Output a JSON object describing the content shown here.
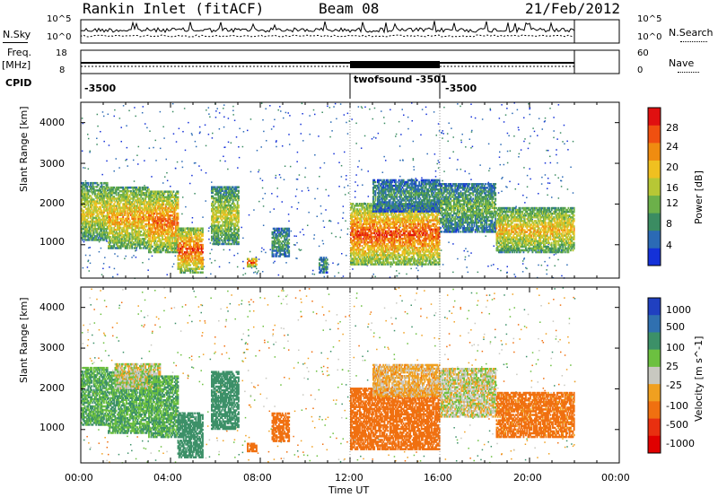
{
  "header": {
    "title": "Rankin Inlet (fitACF)",
    "beam": "Beam 08",
    "date": "21/Feb/2012"
  },
  "top_panel": {
    "nsky_label": "N.Sky",
    "nsearch_label": "N.Search",
    "left_ticks": [
      "10^5",
      "10^0"
    ],
    "right_ticks": [
      "10^5",
      "10^0"
    ],
    "freq_label": "Freq.",
    "freq_unit": "[MHz]",
    "freq_ticks": [
      "18",
      "8"
    ],
    "nave_label": "Nave",
    "nave_ticks": [
      "60",
      "0"
    ],
    "cpid_label": "CPID",
    "cpid_segments": [
      {
        "start_hour": 0.0,
        "end_hour": 12.0,
        "label": "-3500"
      },
      {
        "start_hour": 12.0,
        "end_hour": 16.0,
        "label": "twofsound -3501"
      },
      {
        "start_hour": 16.0,
        "end_hour": 22.0,
        "label": "-3500"
      }
    ]
  },
  "chart_data": [
    {
      "type": "heatmap",
      "name": "power",
      "ylabel": "Slant Range [km]",
      "yticks": [
        "1000",
        "2000",
        "3000",
        "4000"
      ],
      "ylim": [
        180,
        4500
      ],
      "xlim_hours": [
        0,
        24
      ],
      "data_end_hour": 22,
      "colorbar": {
        "label": "Power [dB]",
        "ticks": [
          "4",
          "8",
          "12",
          "16",
          "20",
          "24",
          "28"
        ],
        "colors": [
          "#1431d8",
          "#2b6ab5",
          "#3b8c62",
          "#6cb04a",
          "#b7c735",
          "#f0c020",
          "#f08c10",
          "#f05010",
          "#e01010"
        ]
      },
      "echo_regions": [
        {
          "t0": 0.0,
          "t1": 1.2,
          "r0": 1100,
          "r1": 2500,
          "level": 0.6
        },
        {
          "t0": 1.2,
          "t1": 3.0,
          "r0": 900,
          "r1": 2400,
          "level": 0.7
        },
        {
          "t0": 3.0,
          "t1": 4.3,
          "r0": 800,
          "r1": 2300,
          "level": 0.8
        },
        {
          "t0": 4.3,
          "t1": 5.4,
          "r0": 300,
          "r1": 1400,
          "level": 0.85
        },
        {
          "t0": 5.8,
          "t1": 7.0,
          "r0": 1000,
          "r1": 2400,
          "level": 0.55
        },
        {
          "t0": 7.4,
          "t1": 7.8,
          "r0": 450,
          "r1": 650,
          "level": 0.9
        },
        {
          "t0": 8.5,
          "t1": 9.3,
          "r0": 700,
          "r1": 1400,
          "level": 0.35
        },
        {
          "t0": 10.6,
          "t1": 11.0,
          "r0": 300,
          "r1": 700,
          "level": 0.3
        },
        {
          "t0": 12.0,
          "t1": 16.0,
          "r0": 500,
          "r1": 2000,
          "level": 0.85
        },
        {
          "t0": 13.0,
          "t1": 16.0,
          "r0": 1800,
          "r1": 2600,
          "level": 0.3
        },
        {
          "t0": 16.0,
          "t1": 18.5,
          "r0": 1300,
          "r1": 2500,
          "level": 0.4
        },
        {
          "t0": 18.5,
          "t1": 22.0,
          "r0": 800,
          "r1": 1900,
          "level": 0.65
        }
      ]
    },
    {
      "type": "heatmap",
      "name": "velocity",
      "ylabel": "Slant Range [km]",
      "yticks": [
        "1000",
        "2000",
        "3000",
        "4000"
      ],
      "ylim": [
        180,
        4500
      ],
      "xlim_hours": [
        0,
        24
      ],
      "data_end_hour": 22,
      "colorbar": {
        "label": "Velocity [m s^-1]",
        "ticks": [
          "1000",
          "500",
          "100",
          "25",
          "-25",
          "-100",
          "-500",
          "-1000"
        ],
        "colors": [
          "#2040c0",
          "#3070b0",
          "#3c9068",
          "#6cc040",
          "#c8c8c0",
          "#f0a020",
          "#f07010",
          "#e83010",
          "#e00000"
        ]
      },
      "echo_regions": [
        {
          "t0": 0.0,
          "t1": 1.2,
          "r0": 1100,
          "r1": 2500,
          "vel": 100
        },
        {
          "t0": 1.2,
          "t1": 3.0,
          "r0": 900,
          "r1": 2400,
          "vel": 100
        },
        {
          "t0": 1.5,
          "t1": 3.5,
          "r0": 2000,
          "r1": 2600,
          "vel": 0
        },
        {
          "t0": 3.0,
          "t1": 4.3,
          "r0": 800,
          "r1": 2300,
          "vel": 100
        },
        {
          "t0": 4.3,
          "t1": 5.4,
          "r0": 300,
          "r1": 1400,
          "vel": 300
        },
        {
          "t0": 5.8,
          "t1": 7.0,
          "r0": 1000,
          "r1": 2400,
          "vel": 200
        },
        {
          "t0": 7.4,
          "t1": 7.8,
          "r0": 450,
          "r1": 650,
          "vel": -300
        },
        {
          "t0": 8.5,
          "t1": 9.3,
          "r0": 700,
          "r1": 1400,
          "vel": -300
        },
        {
          "t0": 12.0,
          "t1": 16.0,
          "r0": 500,
          "r1": 2000,
          "vel": -200
        },
        {
          "t0": 13.0,
          "t1": 16.0,
          "r0": 1800,
          "r1": 2600,
          "vel": -50
        },
        {
          "t0": 16.0,
          "t1": 18.5,
          "r0": 1300,
          "r1": 2500,
          "vel": 0
        },
        {
          "t0": 18.5,
          "t1": 22.0,
          "r0": 800,
          "r1": 1900,
          "vel": -150
        }
      ]
    }
  ],
  "x_axis": {
    "label": "Time UT",
    "ticks": [
      "00:00",
      "04:00",
      "08:00",
      "12:00",
      "16:00",
      "20:00",
      "00:00"
    ]
  }
}
